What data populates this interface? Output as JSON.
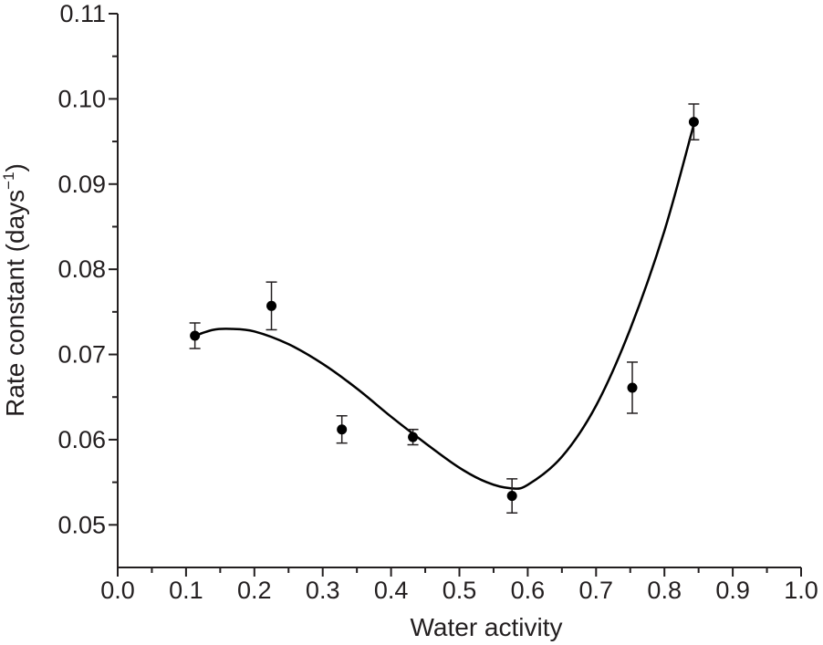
{
  "chart_data": {
    "type": "scatter",
    "title": "",
    "xlabel": "Water activity",
    "ylabel_main": "Rate constant (days",
    "ylabel_sup": "−1",
    "ylabel_close": ")",
    "xlim": [
      0.0,
      1.0
    ],
    "ylim": [
      0.045,
      0.11
    ],
    "x_ticks": [
      "0.0",
      "0.1",
      "0.2",
      "0.3",
      "0.4",
      "0.5",
      "0.6",
      "0.7",
      "0.8",
      "0.9",
      "1.0"
    ],
    "x_tick_values": [
      0.0,
      0.1,
      0.2,
      0.3,
      0.4,
      0.5,
      0.6,
      0.7,
      0.8,
      0.9,
      1.0
    ],
    "y_ticks": [
      "0.05",
      "0.06",
      "0.07",
      "0.08",
      "0.09",
      "0.10",
      "0.11"
    ],
    "y_tick_values": [
      0.05,
      0.06,
      0.07,
      0.08,
      0.09,
      0.1,
      0.11
    ],
    "grid": false,
    "legend": "none",
    "series": [
      {
        "points": [
          {
            "x": 0.113,
            "y": 0.0722,
            "err": 0.0015
          },
          {
            "x": 0.225,
            "y": 0.0757,
            "err": 0.0028
          },
          {
            "x": 0.328,
            "y": 0.0612,
            "err": 0.0016
          },
          {
            "x": 0.432,
            "y": 0.0603,
            "err": 0.0009
          },
          {
            "x": 0.577,
            "y": 0.0534,
            "err": 0.002
          },
          {
            "x": 0.753,
            "y": 0.0661,
            "err": 0.003
          },
          {
            "x": 0.843,
            "y": 0.0973,
            "err": 0.0021
          }
        ]
      }
    ],
    "fit_curve": {
      "x": [
        0.113,
        0.14,
        0.165,
        0.2,
        0.25,
        0.3,
        0.35,
        0.4,
        0.45,
        0.5,
        0.54,
        0.575,
        0.6,
        0.65,
        0.7,
        0.75,
        0.8,
        0.843
      ],
      "y": [
        0.0722,
        0.0729,
        0.073,
        0.0727,
        0.0712,
        0.0689,
        0.066,
        0.0627,
        0.0596,
        0.0567,
        0.055,
        0.0543,
        0.0547,
        0.058,
        0.064,
        0.073,
        0.0845,
        0.097
      ]
    }
  }
}
